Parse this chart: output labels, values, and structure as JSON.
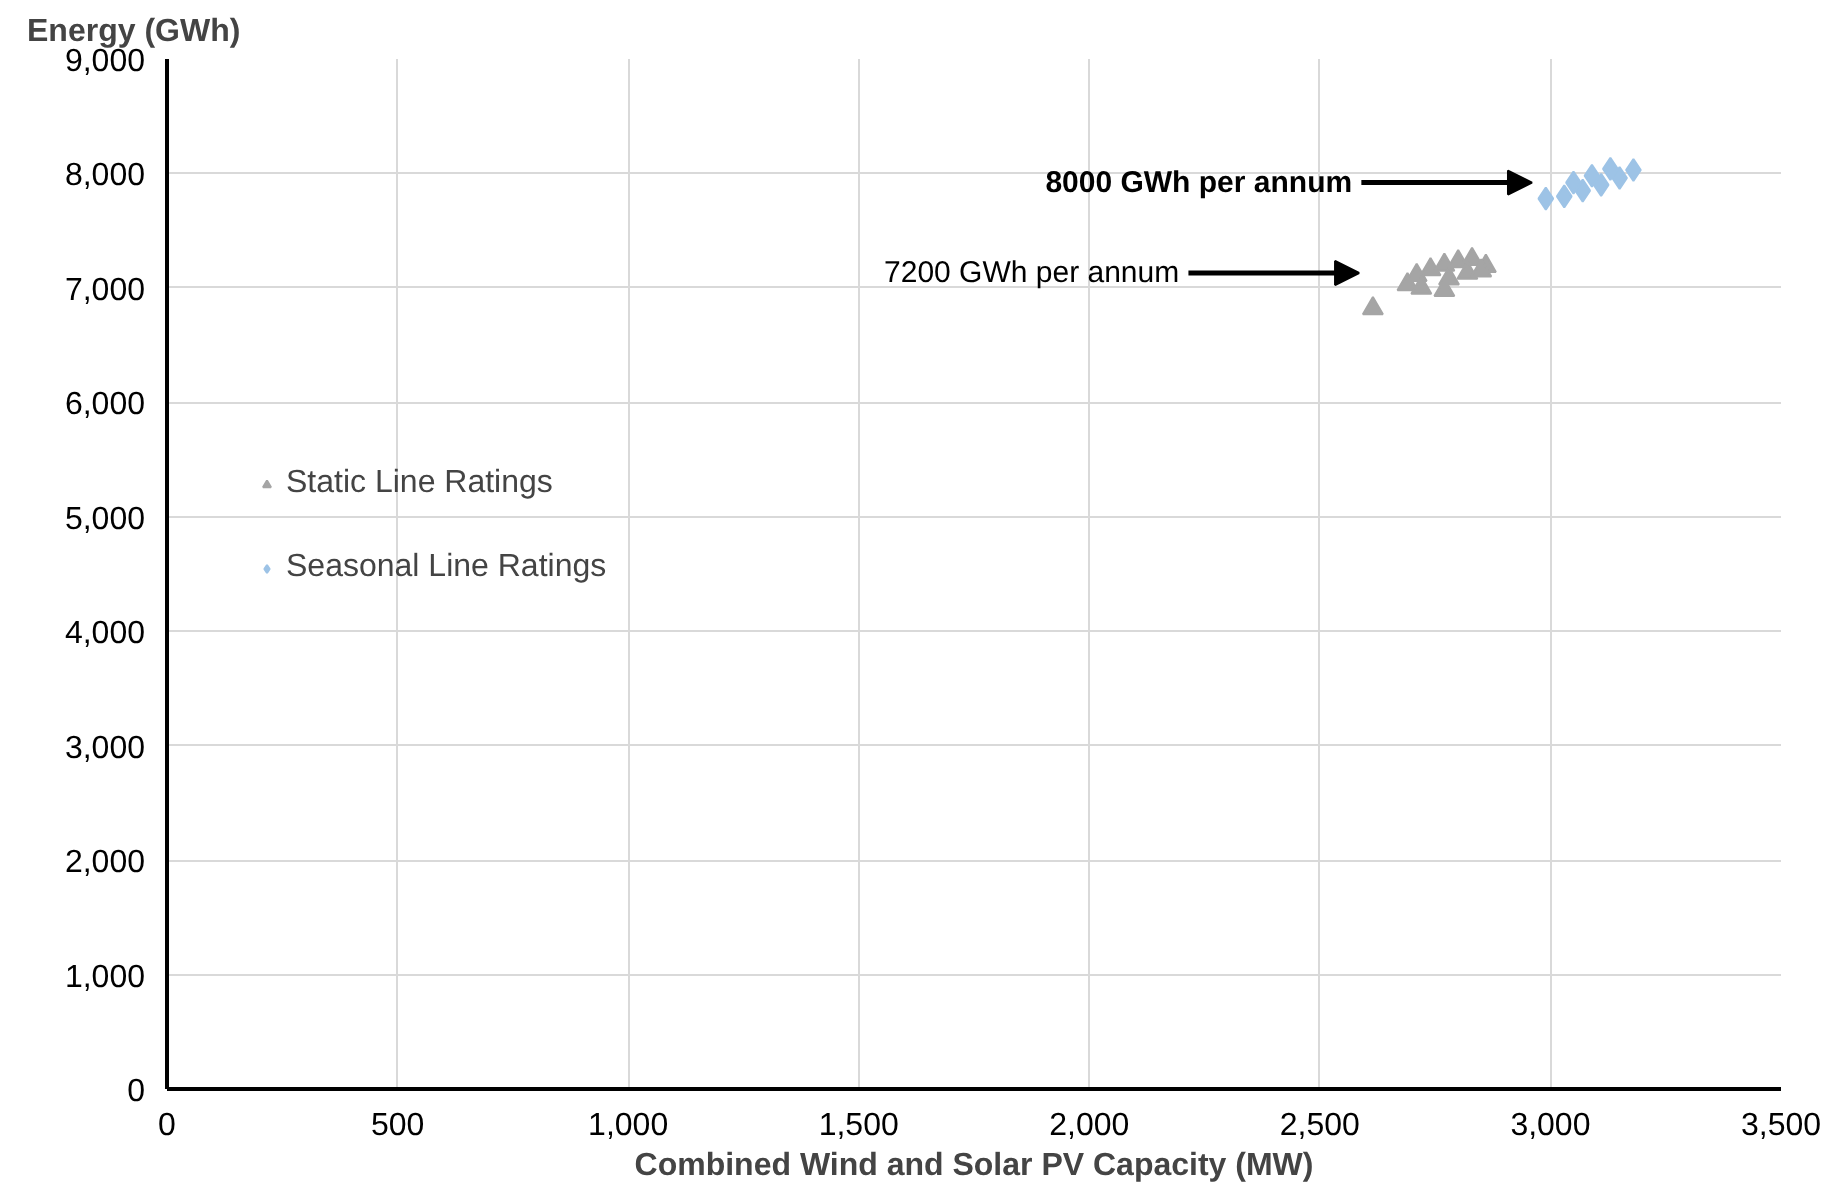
{
  "chart_data": {
    "type": "scatter",
    "xlabel": "Combined Wind and Solar PV Capacity (MW)",
    "ylabel": "Energy (GWh)",
    "xlim": [
      0,
      3500
    ],
    "ylim": [
      0,
      9000
    ],
    "xticks": [
      0,
      500,
      {
        "value": 1000,
        "label": "1,000"
      },
      {
        "value": 1500,
        "label": "1,500"
      },
      {
        "value": 2000,
        "label": "2,000"
      },
      {
        "value": 2500,
        "label": "2,500"
      },
      {
        "value": 3000,
        "label": "3,000"
      },
      {
        "value": 3500,
        "label": "3,500"
      }
    ],
    "yticks": [
      0,
      {
        "value": 1000,
        "label": "1,000"
      },
      {
        "value": 2000,
        "label": "2,000"
      },
      {
        "value": 3000,
        "label": "3,000"
      },
      {
        "value": 4000,
        "label": "4,000"
      },
      {
        "value": 5000,
        "label": "5,000"
      },
      {
        "value": 6000,
        "label": "6,000"
      },
      {
        "value": 7000,
        "label": "7,000"
      },
      {
        "value": 8000,
        "label": "8,000"
      },
      {
        "value": 9000,
        "label": "9,000"
      }
    ],
    "grid": true,
    "legend": "left",
    "series": [
      {
        "name": "Static Line Ratings",
        "color": "#a5a5a5",
        "marker": "triangle",
        "x": [
          2615,
          2770,
          2690,
          2710,
          2740,
          2770,
          2800,
          2830,
          2860,
          2720,
          2780,
          2820,
          2850
        ],
        "values": [
          6820,
          6980,
          7030,
          7110,
          7160,
          7200,
          7230,
          7250,
          7190,
          7000,
          7080,
          7130,
          7150
        ]
      },
      {
        "name": "Seasonal Line Ratings",
        "color": "#9dc3e6",
        "marker": "diamond",
        "x": [
          2990,
          3030,
          3070,
          3110,
          3150,
          3180,
          3050,
          3090,
          3130
        ],
        "values": [
          7780,
          7800,
          7850,
          7900,
          7960,
          8030,
          7920,
          7980,
          8040
        ]
      }
    ],
    "annotations": [
      "8000 GWh per annum",
      "7200 GWh per annum"
    ]
  }
}
